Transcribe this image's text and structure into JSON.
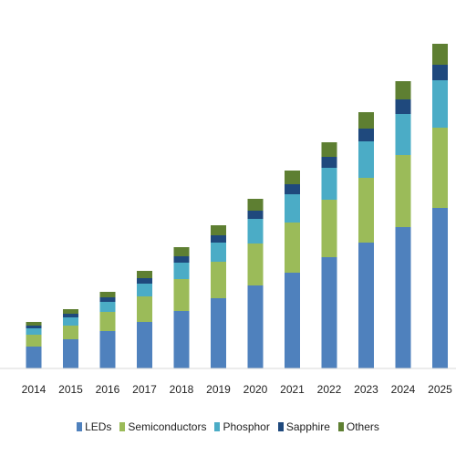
{
  "chart_data": {
    "type": "bar",
    "stacked": true,
    "categories": [
      "2014",
      "2015",
      "2016",
      "2017",
      "2018",
      "2019",
      "2020",
      "2021",
      "2022",
      "2023",
      "2024",
      "2025"
    ],
    "series": [
      {
        "name": "LEDs",
        "color": "#4f81bd",
        "values": [
          24,
          32,
          41,
          51,
          63,
          77,
          91,
          105,
          122,
          138,
          155,
          176
        ]
      },
      {
        "name": "Semiconductors",
        "color": "#9bbb59",
        "values": [
          13,
          15,
          21,
          28,
          35,
          40,
          46,
          55,
          63,
          71,
          79,
          88
        ]
      },
      {
        "name": "Phosphor",
        "color": "#4bacc6",
        "values": [
          7,
          9,
          11,
          14,
          18,
          21,
          27,
          31,
          35,
          40,
          45,
          52
        ]
      },
      {
        "name": "Sapphire",
        "color": "#1f497d",
        "values": [
          3,
          4,
          5,
          6,
          7,
          8,
          9,
          11,
          12,
          14,
          16,
          17
        ]
      },
      {
        "name": "Others",
        "color": "#5e7f32",
        "values": [
          4,
          5,
          6,
          8,
          10,
          11,
          13,
          15,
          16,
          18,
          20,
          23
        ]
      }
    ],
    "ylim": [
      0,
      360
    ],
    "grid": false,
    "legend_position": "bottom",
    "title": "",
    "xlabel": "",
    "ylabel": ""
  }
}
